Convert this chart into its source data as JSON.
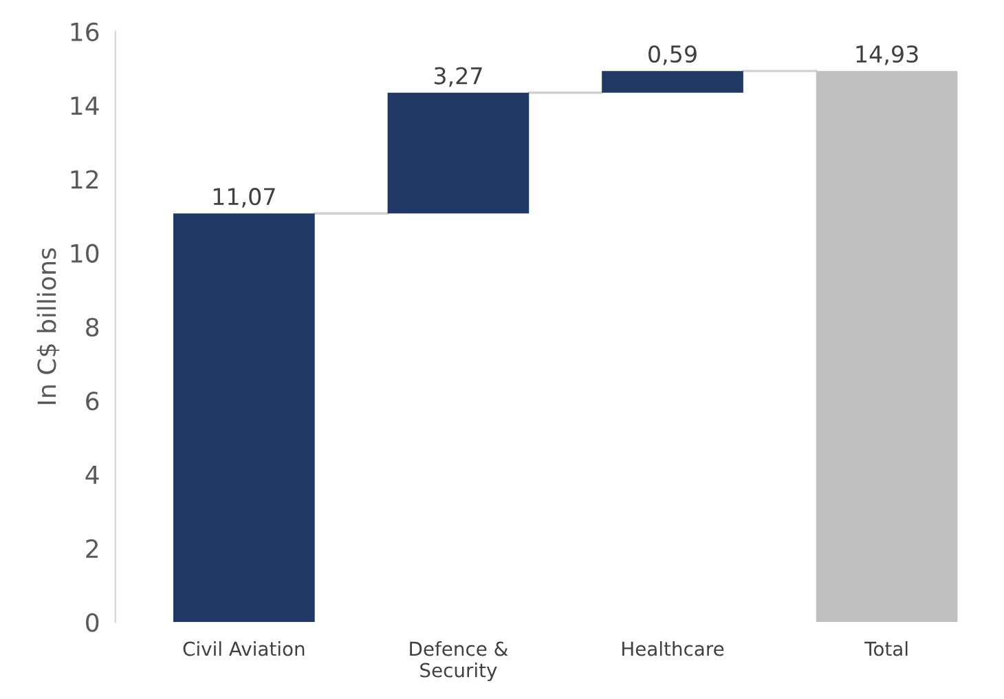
{
  "chart_data": {
    "type": "bar",
    "ylabel": "In C$ billions",
    "categories": [
      "Civil Aviation",
      "Defence &\nSecurity",
      "Healthcare",
      "Total"
    ],
    "values": [
      11.07,
      3.27,
      0.59,
      14.93
    ],
    "base": [
      0,
      11.07,
      14.34,
      0
    ],
    "colors": [
      "#203864",
      "#203864",
      "#203864",
      "#bfbfbf"
    ],
    "value_labels": [
      "11,07",
      "3,27",
      "0,59",
      "14,93"
    ],
    "ylim": [
      0,
      16
    ],
    "yticks": [
      0,
      2,
      4,
      6,
      8,
      10,
      12,
      14,
      16
    ],
    "grid": false
  }
}
